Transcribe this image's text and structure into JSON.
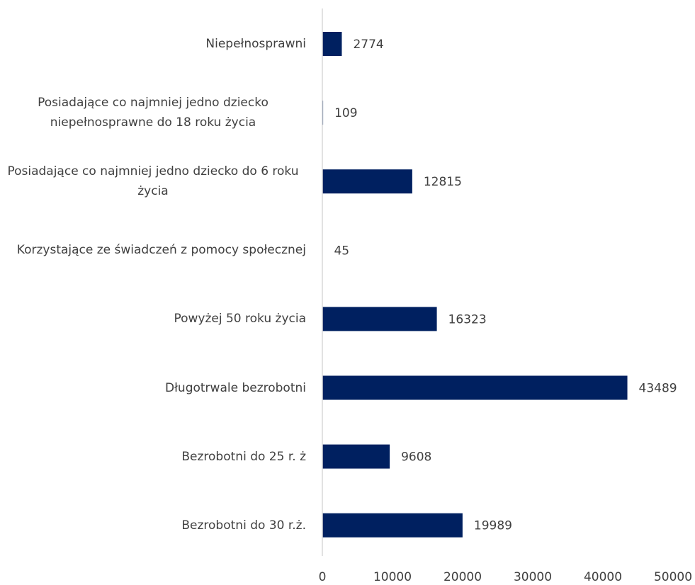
{
  "chart_data": {
    "type": "barh",
    "categories": [
      "Niepełnosprawni",
      "Posiadające co najmniej jedno dziecko niepełnosprawne do 18 roku życia",
      "Posiadające co najmniej jedno dziecko do 6 roku życia",
      "Korzystające ze świadczeń z pomocy społecznej",
      "Powyżej 50 roku życia",
      "Długotrwale bezrobotni",
      "Bezrobotni do 25 r. ż",
      "Bezrobotni do 30 r.ż."
    ],
    "values": [
      2774,
      109,
      12815,
      45,
      16323,
      43489,
      9608,
      19989
    ],
    "color": "#002060",
    "xlim": [
      0,
      50000
    ],
    "xticks": [
      0,
      10000,
      20000,
      30000,
      40000,
      50000
    ]
  }
}
